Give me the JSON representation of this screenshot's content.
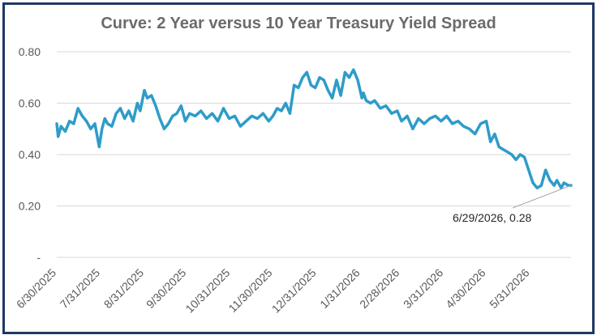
{
  "chart_data": {
    "type": "line",
    "title": "Curve: 2 Year versus 10 Year Treasury Yield Spread",
    "xlabel": "",
    "ylabel": "",
    "ylim": [
      0,
      0.8
    ],
    "y_ticks": [
      0,
      0.2,
      0.4,
      0.6,
      0.8
    ],
    "y_tick_labels": [
      "-",
      "0.20",
      "0.40",
      "0.60",
      "0.80"
    ],
    "x_range": [
      "2025-06-30",
      "2026-06-29"
    ],
    "x_tick_labels": [
      "6/30/2025",
      "7/31/2025",
      "8/31/2025",
      "9/30/2025",
      "10/31/2025",
      "11/30/2025",
      "12/31/2025",
      "1/31/2026",
      "2/28/2026",
      "3/31/2026",
      "4/30/2026",
      "5/31/2026"
    ],
    "x_tick_dates": [
      "2025-06-30",
      "2025-07-31",
      "2025-08-31",
      "2025-09-30",
      "2025-10-31",
      "2025-11-30",
      "2025-12-31",
      "2026-01-31",
      "2026-02-28",
      "2026-03-31",
      "2026-04-30",
      "2026-05-31"
    ],
    "grid": {
      "horizontal": true,
      "vertical": false
    },
    "line_color": "#2e9cc9",
    "series": [
      {
        "x": [
          "2025-06-30",
          "2025-07-01",
          "2025-07-03",
          "2025-07-06",
          "2025-07-09",
          "2025-07-12",
          "2025-07-15",
          "2025-07-18",
          "2025-07-21",
          "2025-07-24",
          "2025-07-27",
          "2025-07-30",
          "2025-08-01",
          "2025-08-03",
          "2025-08-05",
          "2025-08-08",
          "2025-08-11",
          "2025-08-14",
          "2025-08-17",
          "2025-08-20",
          "2025-08-23",
          "2025-08-26",
          "2025-08-28",
          "2025-08-31",
          "2025-09-02",
          "2025-09-05",
          "2025-09-08",
          "2025-09-11",
          "2025-09-14",
          "2025-09-17",
          "2025-09-20",
          "2025-09-23",
          "2025-09-26",
          "2025-09-29",
          "2025-10-02",
          "2025-10-06",
          "2025-10-10",
          "2025-10-14",
          "2025-10-18",
          "2025-10-22",
          "2025-10-26",
          "2025-10-30",
          "2025-11-03",
          "2025-11-07",
          "2025-11-11",
          "2025-11-15",
          "2025-11-19",
          "2025-11-23",
          "2025-11-27",
          "2025-11-30",
          "2025-12-03",
          "2025-12-06",
          "2025-12-09",
          "2025-12-12",
          "2025-12-15",
          "2025-12-18",
          "2025-12-21",
          "2025-12-24",
          "2025-12-27",
          "2025-12-30",
          "2026-01-02",
          "2026-01-05",
          "2026-01-08",
          "2026-01-11",
          "2026-01-14",
          "2026-01-17",
          "2026-01-20",
          "2026-01-23",
          "2026-01-26",
          "2026-01-29",
          "2026-02-01",
          "2026-02-02",
          "2026-02-04",
          "2026-02-07",
          "2026-02-10",
          "2026-02-14",
          "2026-02-18",
          "2026-02-22",
          "2026-02-26",
          "2026-03-01",
          "2026-03-05",
          "2026-03-09",
          "2026-03-13",
          "2026-03-17",
          "2026-03-21",
          "2026-03-25",
          "2026-03-29",
          "2026-04-02",
          "2026-04-06",
          "2026-04-10",
          "2026-04-14",
          "2026-04-18",
          "2026-04-22",
          "2026-04-26",
          "2026-04-30",
          "2026-05-03",
          "2026-05-06",
          "2026-05-09",
          "2026-05-12",
          "2026-05-15",
          "2026-05-18",
          "2026-05-21",
          "2026-05-24",
          "2026-05-27",
          "2026-05-30",
          "2026-06-02",
          "2026-06-05",
          "2026-06-08",
          "2026-06-11",
          "2026-06-14",
          "2026-06-17",
          "2026-06-19",
          "2026-06-22",
          "2026-06-24",
          "2026-06-27",
          "2026-06-29"
        ],
        "y": [
          0.52,
          0.47,
          0.51,
          0.49,
          0.53,
          0.52,
          0.58,
          0.55,
          0.53,
          0.5,
          0.52,
          0.43,
          0.5,
          0.54,
          0.52,
          0.51,
          0.56,
          0.58,
          0.54,
          0.57,
          0.53,
          0.6,
          0.57,
          0.65,
          0.62,
          0.63,
          0.59,
          0.54,
          0.5,
          0.52,
          0.55,
          0.56,
          0.59,
          0.53,
          0.56,
          0.55,
          0.57,
          0.54,
          0.56,
          0.53,
          0.58,
          0.54,
          0.55,
          0.51,
          0.53,
          0.55,
          0.54,
          0.56,
          0.53,
          0.55,
          0.58,
          0.57,
          0.6,
          0.56,
          0.67,
          0.66,
          0.7,
          0.72,
          0.67,
          0.66,
          0.7,
          0.69,
          0.65,
          0.62,
          0.69,
          0.63,
          0.72,
          0.7,
          0.73,
          0.69,
          0.62,
          0.64,
          0.61,
          0.6,
          0.61,
          0.58,
          0.59,
          0.56,
          0.57,
          0.53,
          0.55,
          0.5,
          0.54,
          0.52,
          0.54,
          0.55,
          0.53,
          0.55,
          0.52,
          0.53,
          0.51,
          0.5,
          0.48,
          0.52,
          0.53,
          0.45,
          0.48,
          0.43,
          0.42,
          0.41,
          0.4,
          0.38,
          0.4,
          0.39,
          0.34,
          0.29,
          0.27,
          0.28,
          0.34,
          0.3,
          0.28,
          0.3,
          0.27,
          0.29,
          0.28,
          0.28
        ]
      }
    ],
    "annotation": {
      "text": "6/29/2026,  0.28",
      "x": "2026-06-29",
      "y": 0.28
    }
  }
}
